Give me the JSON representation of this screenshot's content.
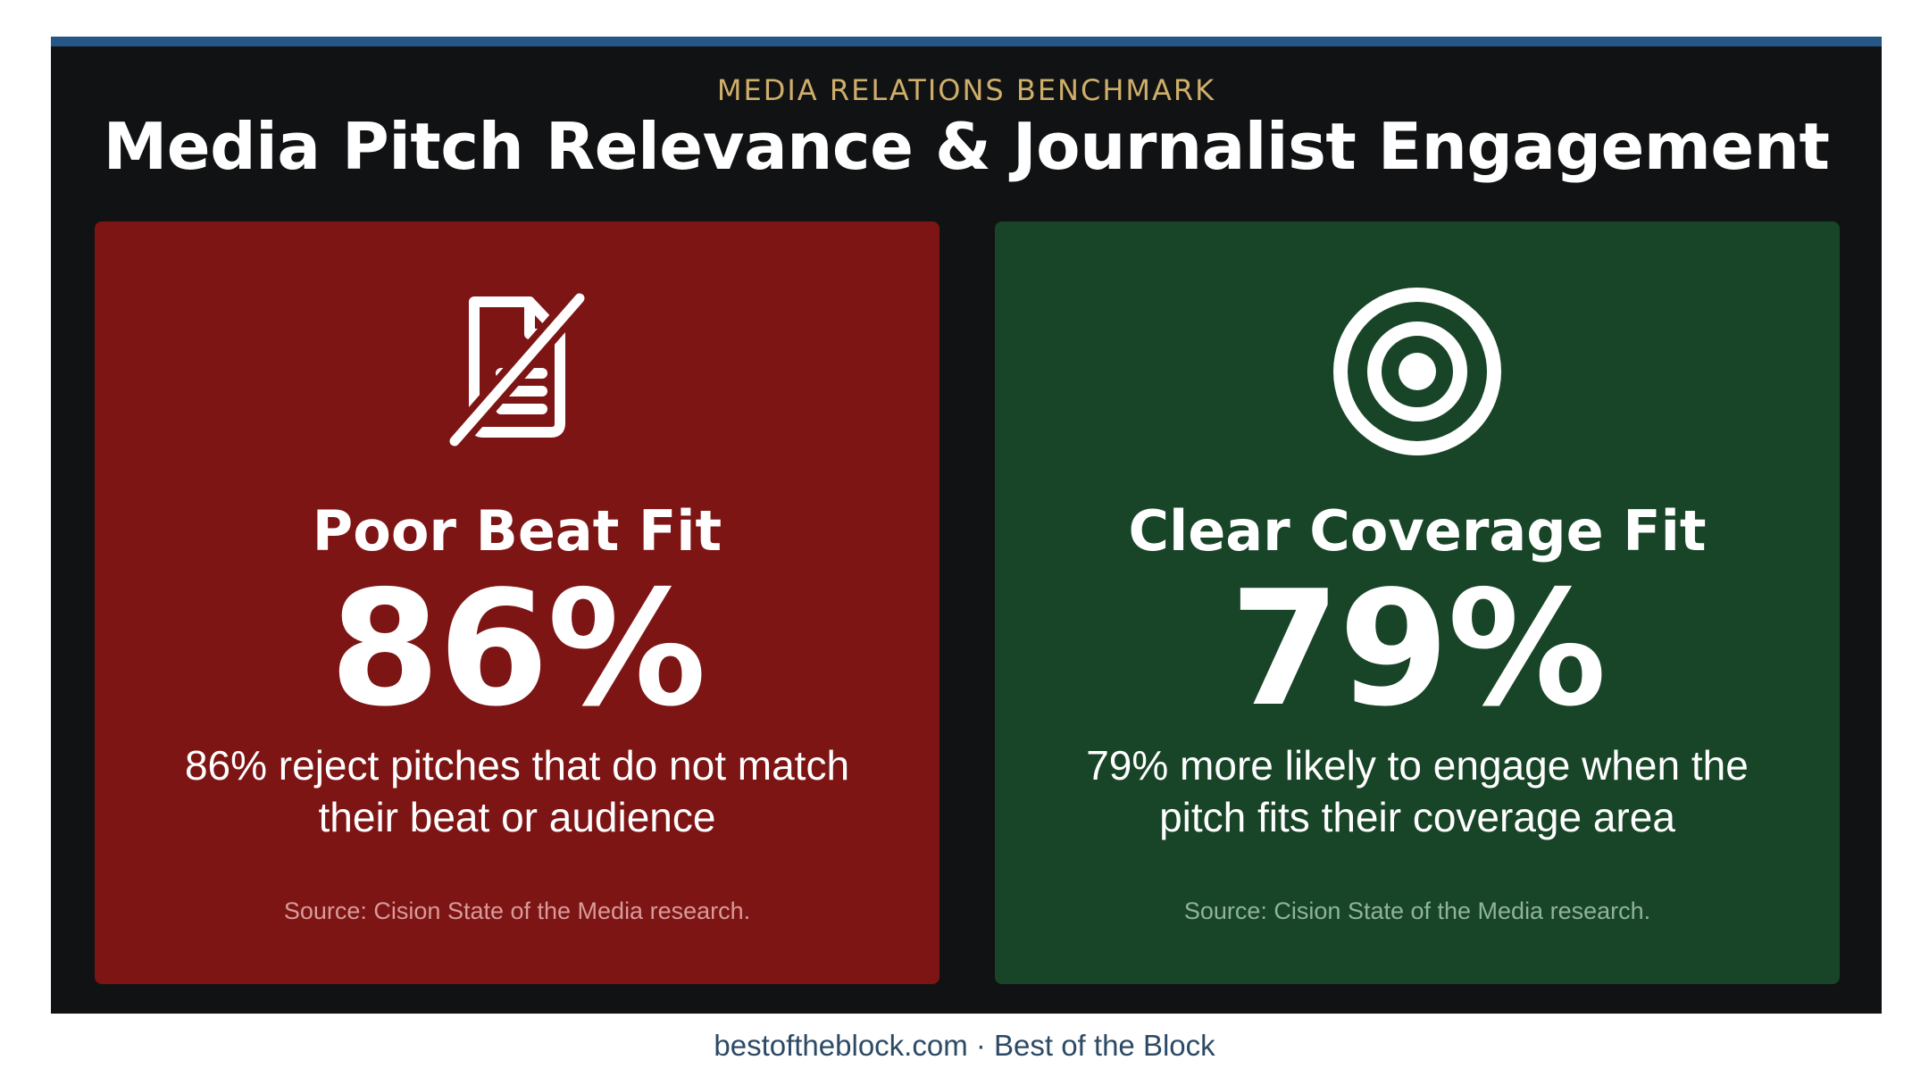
{
  "header": {
    "kicker": "MEDIA RELATIONS BENCHMARK",
    "title": "Media Pitch Relevance & Journalist Engagement"
  },
  "cards": [
    {
      "icon": "document-crossed-out-icon",
      "title": "Poor Beat Fit",
      "stat": "86%",
      "description": "86% reject pitches that do not match their beat or audience",
      "source": "Source: Cision State of the Media research.",
      "color": "#7e1515"
    },
    {
      "icon": "target-icon",
      "title": "Clear Coverage Fit",
      "stat": "79%",
      "description": "79% more likely to engage when the pitch fits their coverage area",
      "source": "Source: Cision State of the Media research.",
      "color": "#184528"
    }
  ],
  "footer": {
    "text": "bestoftheblock.com · Best of the Block"
  },
  "colors": {
    "background": "#111213",
    "top_rule": "#255686",
    "kicker": "#cfae6a"
  }
}
